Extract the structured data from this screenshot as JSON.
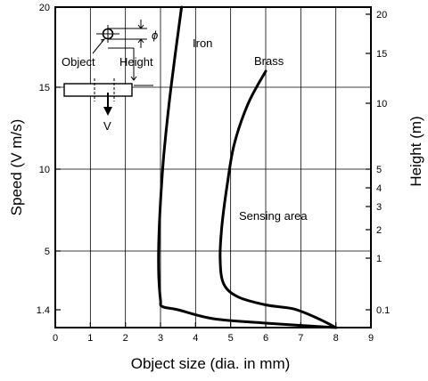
{
  "chart_data": {
    "type": "line",
    "title": "",
    "xlabel": "Object size (dia. in mm)",
    "ylabel": "Speed (V m/s)",
    "y2label": "Height (m)",
    "xlim": [
      0,
      9
    ],
    "x_ticks": [
      "0",
      "1",
      "2",
      "3",
      "4",
      "5",
      "6",
      "7",
      "8",
      "9"
    ],
    "y_ticks": [
      {
        "label": "20",
        "value": 20
      },
      {
        "label": "15",
        "value": 15
      },
      {
        "label": "10",
        "value": 10
      },
      {
        "label": "5",
        "value": 5
      },
      {
        "label": "1.4",
        "value": 1.4
      }
    ],
    "y2_ticks": [
      "20",
      "15",
      "10",
      "5",
      "4",
      "3",
      "2",
      "1",
      "0.1"
    ],
    "grid": true,
    "series": [
      {
        "name": "Iron",
        "x": [
          3.6,
          3.3,
          3.1,
          3.0,
          2.95,
          2.95,
          3.0,
          3.05,
          3.5,
          4.5,
          6.0,
          8.0
        ],
        "y": [
          20.0,
          15.0,
          11.0,
          8.0,
          5.5,
          3.5,
          2.0,
          1.6,
          1.4,
          1.3,
          1.25,
          1.2
        ]
      },
      {
        "name": "Brass",
        "x": [
          6.0,
          5.5,
          5.1,
          4.9,
          4.75,
          4.7,
          4.8,
          5.2,
          6.0,
          6.8,
          7.5,
          8.0
        ],
        "y": [
          16.0,
          14.0,
          11.5,
          9.0,
          6.5,
          4.5,
          3.0,
          2.2,
          1.7,
          1.45,
          1.3,
          1.2
        ]
      }
    ],
    "annotations": {
      "region": "Sensing area",
      "object": "Object",
      "height": "Height",
      "phi": "ϕ",
      "v": "V"
    }
  }
}
